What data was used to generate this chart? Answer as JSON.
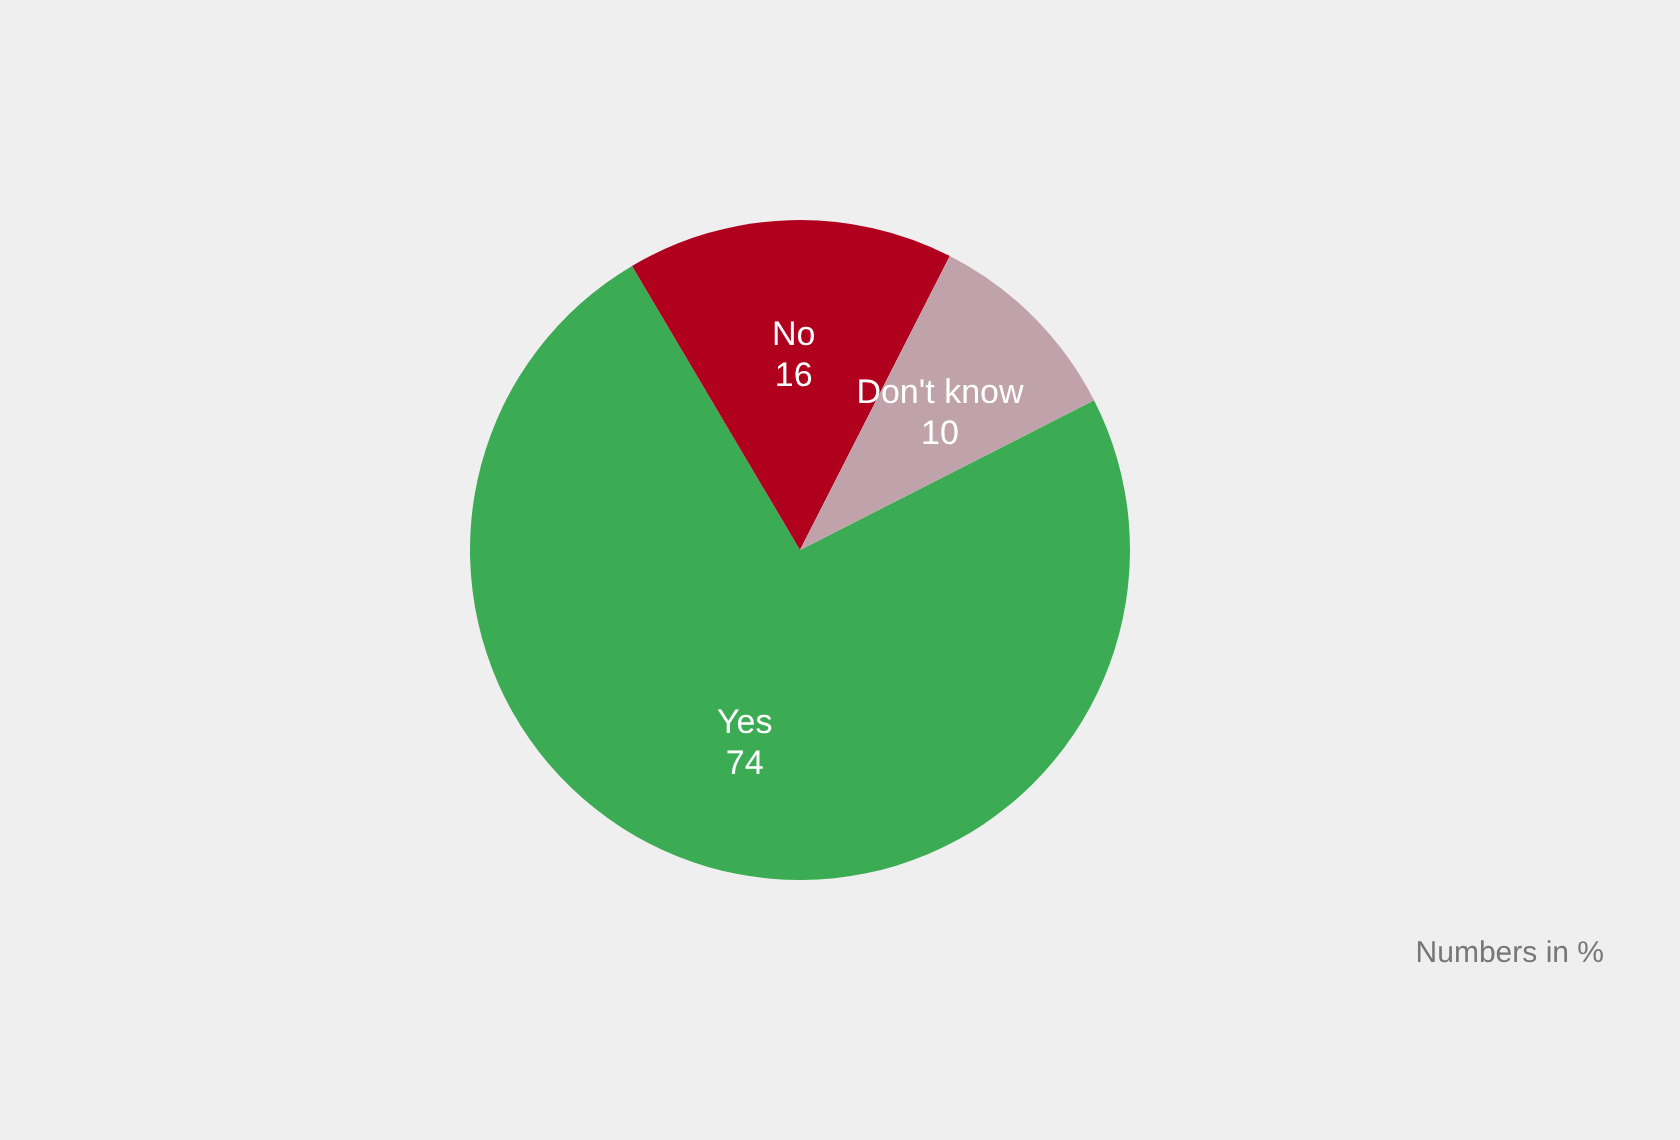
{
  "chart_data": {
    "type": "pie",
    "categories": [
      "Yes",
      "No",
      "Don't know"
    ],
    "values": [
      74,
      16,
      10
    ],
    "colors": [
      "#3cac54",
      "#b0001e",
      "#c0a2aa"
    ],
    "data_labels": true,
    "annotations": [
      "Numbers in %"
    ]
  }
}
